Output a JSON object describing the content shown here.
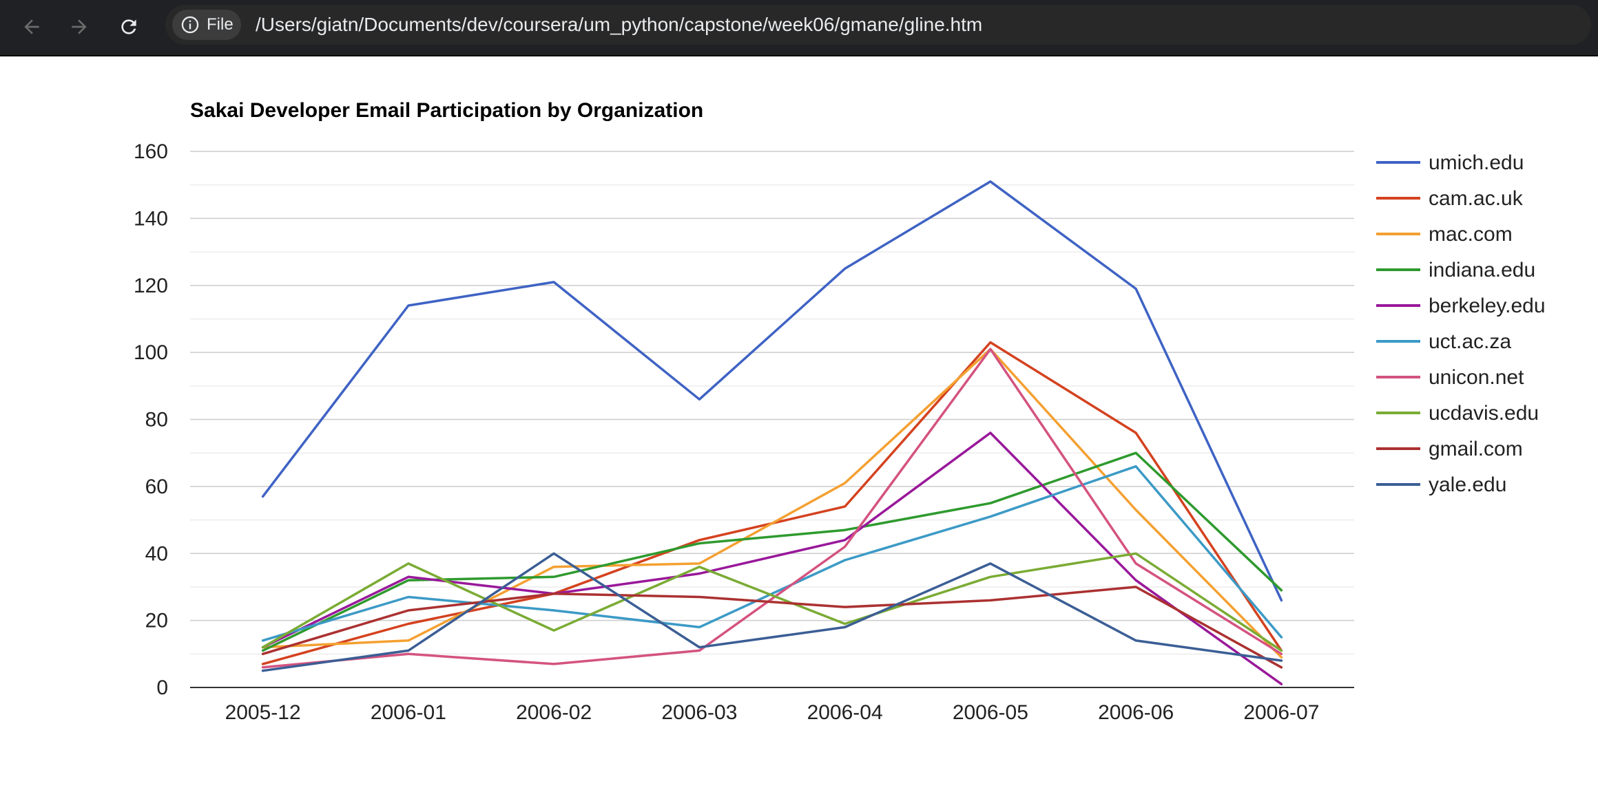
{
  "browser": {
    "chip_label": "File",
    "url": "/Users/giatn/Documents/dev/coursera/um_python/capstone/week06/gmane/gline.htm",
    "icons": [
      "back-arrow-icon",
      "forward-arrow-icon",
      "reload-icon",
      "info-icon"
    ]
  },
  "chart_data": {
    "type": "line",
    "title": "Sakai Developer Email Participation by Organization",
    "xlabel": "",
    "ylabel": "",
    "categories": [
      "2005-12",
      "2006-01",
      "2006-02",
      "2006-03",
      "2006-04",
      "2006-05",
      "2006-06",
      "2006-07"
    ],
    "ylim": [
      0,
      160
    ],
    "yticks": [
      0,
      20,
      40,
      60,
      80,
      100,
      120,
      140,
      160
    ],
    "grid": true,
    "legend": "right",
    "series": [
      {
        "name": "umich.edu",
        "color": "#3f63c4",
        "values": [
          57,
          114,
          121,
          86,
          125,
          151,
          119,
          26
        ]
      },
      {
        "name": "cam.ac.uk",
        "color": "#d4421f",
        "values": [
          7,
          19,
          28,
          44,
          54,
          103,
          76,
          11
        ]
      },
      {
        "name": "mac.com",
        "color": "#f4a031",
        "values": [
          12,
          14,
          36,
          37,
          61,
          101,
          53,
          9
        ]
      },
      {
        "name": "indiana.edu",
        "color": "#2e9a2e",
        "values": [
          11,
          32,
          33,
          43,
          47,
          55,
          70,
          29
        ]
      },
      {
        "name": "berkeley.edu",
        "color": "#99189a",
        "values": [
          12,
          33,
          28,
          34,
          44,
          76,
          32,
          1
        ]
      },
      {
        "name": "uct.ac.za",
        "color": "#3c9ac6",
        "values": [
          14,
          27,
          23,
          18,
          38,
          51,
          66,
          15
        ]
      },
      {
        "name": "unicon.net",
        "color": "#d45380",
        "values": [
          6,
          10,
          7,
          11,
          42,
          101,
          37,
          10
        ]
      },
      {
        "name": "ucdavis.edu",
        "color": "#7aab34",
        "values": [
          12,
          37,
          17,
          36,
          19,
          33,
          40,
          11
        ]
      },
      {
        "name": "gmail.com",
        "color": "#ab3131",
        "values": [
          10,
          23,
          28,
          27,
          24,
          26,
          30,
          6
        ]
      },
      {
        "name": "yale.edu",
        "color": "#3b5e95",
        "values": [
          5,
          11,
          40,
          12,
          18,
          37,
          14,
          8
        ]
      }
    ]
  }
}
